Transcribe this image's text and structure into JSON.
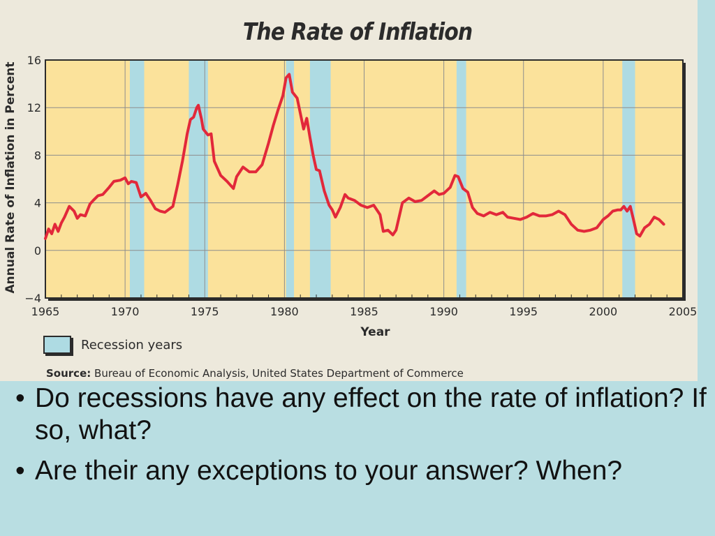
{
  "slide": {
    "questions": [
      "Do recessions have any effect on the rate of inflation? If so, what?",
      "Are their any exceptions to your answer? When?"
    ],
    "bullet_glyph": "•"
  },
  "colors": {
    "plot_background": "#fbe29b",
    "recession_band": "#aedbe3",
    "line": "#e2283a",
    "grid": "#8d8d8d",
    "slide_background": "#b9dee2",
    "figure_background": "#ede9dc"
  },
  "chart_data": {
    "type": "line",
    "title": "The Rate of Inflation",
    "xlabel": "Year",
    "ylabel": "Annual Rate of Inflation in Percent",
    "xlim": [
      1965,
      2005
    ],
    "ylim": [
      -4,
      16
    ],
    "xticks": [
      1965,
      1970,
      1975,
      1980,
      1985,
      1990,
      1995,
      2000,
      2005
    ],
    "yticks": [
      -4,
      0,
      4,
      8,
      12,
      16
    ],
    "ytick_labels": [
      "−4",
      "0",
      "4",
      "8",
      "12",
      "16"
    ],
    "grid": true,
    "legend": {
      "label": "Recession years",
      "placement": "bottom-left"
    },
    "source_label": "Source:",
    "source_text": "Bureau of Economic Analysis, United States Department of Commerce",
    "recessions": [
      [
        1970.3,
        1971.2
      ],
      [
        1974.0,
        1975.2
      ],
      [
        1980.1,
        1980.6
      ],
      [
        1981.6,
        1982.9
      ],
      [
        1990.8,
        1991.4
      ],
      [
        2001.2,
        2002.0
      ]
    ],
    "series": [
      {
        "x": [
          1965.0,
          1965.2,
          1965.4,
          1965.6,
          1965.8,
          1966.0,
          1966.2,
          1966.5,
          1966.8,
          1967.0,
          1967.2,
          1967.5,
          1967.8,
          1968.0,
          1968.3,
          1968.6,
          1969.0,
          1969.3,
          1969.7,
          1970.0,
          1970.2,
          1970.4,
          1970.7,
          1971.0,
          1971.3,
          1971.6,
          1971.9,
          1972.2,
          1972.5,
          1972.8,
          1973.0,
          1973.3,
          1973.6,
          1973.9,
          1974.1,
          1974.3,
          1974.5,
          1974.6,
          1974.8,
          1974.9,
          1975.2,
          1975.4,
          1975.6,
          1976.0,
          1976.4,
          1976.8,
          1977.0,
          1977.4,
          1977.8,
          1978.2,
          1978.6,
          1979.0,
          1979.3,
          1979.6,
          1979.9,
          1980.1,
          1980.3,
          1980.5,
          1980.8,
          1981.0,
          1981.2,
          1981.4,
          1981.6,
          1981.8,
          1982.0,
          1982.2,
          1982.5,
          1982.8,
          1983.0,
          1983.2,
          1983.5,
          1983.8,
          1984.0,
          1984.4,
          1984.8,
          1985.2,
          1985.6,
          1986.0,
          1986.2,
          1986.5,
          1986.8,
          1987.0,
          1987.4,
          1987.8,
          1988.2,
          1988.6,
          1989.0,
          1989.4,
          1989.7,
          1990.0,
          1990.4,
          1990.7,
          1990.9,
          1991.2,
          1991.5,
          1991.8,
          1992.1,
          1992.5,
          1992.9,
          1993.3,
          1993.7,
          1994.0,
          1994.4,
          1994.8,
          1995.2,
          1995.6,
          1996.0,
          1996.4,
          1996.8,
          1997.2,
          1997.6,
          1998.0,
          1998.4,
          1998.8,
          1999.2,
          1999.6,
          2000.0,
          2000.3,
          2000.6,
          2000.9,
          2001.1,
          2001.3,
          2001.5,
          2001.7,
          2001.9,
          2002.1,
          2002.3,
          2002.6,
          2002.9,
          2003.2,
          2003.5,
          2003.8
        ],
        "y": [
          1.0,
          1.8,
          1.4,
          2.2,
          1.6,
          2.3,
          2.8,
          3.7,
          3.3,
          2.7,
          3.0,
          2.9,
          3.9,
          4.2,
          4.6,
          4.7,
          5.3,
          5.8,
          5.9,
          6.1,
          5.6,
          5.8,
          5.7,
          4.5,
          4.8,
          4.2,
          3.5,
          3.3,
          3.2,
          3.5,
          3.7,
          5.5,
          7.5,
          9.8,
          11.0,
          11.2,
          12.0,
          12.2,
          11.0,
          10.2,
          9.7,
          9.8,
          7.5,
          6.3,
          5.8,
          5.2,
          6.2,
          7.0,
          6.6,
          6.6,
          7.2,
          9.0,
          10.5,
          11.8,
          13.0,
          14.5,
          14.8,
          13.3,
          12.8,
          11.5,
          10.2,
          11.1,
          9.5,
          8.0,
          6.8,
          6.7,
          5.0,
          3.8,
          3.4,
          2.8,
          3.6,
          4.7,
          4.4,
          4.2,
          3.8,
          3.6,
          3.8,
          3.0,
          1.6,
          1.7,
          1.3,
          1.7,
          4.0,
          4.4,
          4.1,
          4.2,
          4.6,
          5.0,
          4.7,
          4.8,
          5.3,
          6.3,
          6.2,
          5.2,
          4.9,
          3.6,
          3.1,
          2.9,
          3.2,
          3.0,
          3.2,
          2.8,
          2.7,
          2.6,
          2.8,
          3.1,
          2.9,
          2.9,
          3.0,
          3.3,
          3.0,
          2.2,
          1.7,
          1.6,
          1.7,
          1.9,
          2.6,
          2.9,
          3.3,
          3.4,
          3.4,
          3.7,
          3.3,
          3.7,
          2.6,
          1.4,
          1.2,
          1.9,
          2.2,
          2.8,
          2.6,
          2.2
        ]
      }
    ]
  }
}
